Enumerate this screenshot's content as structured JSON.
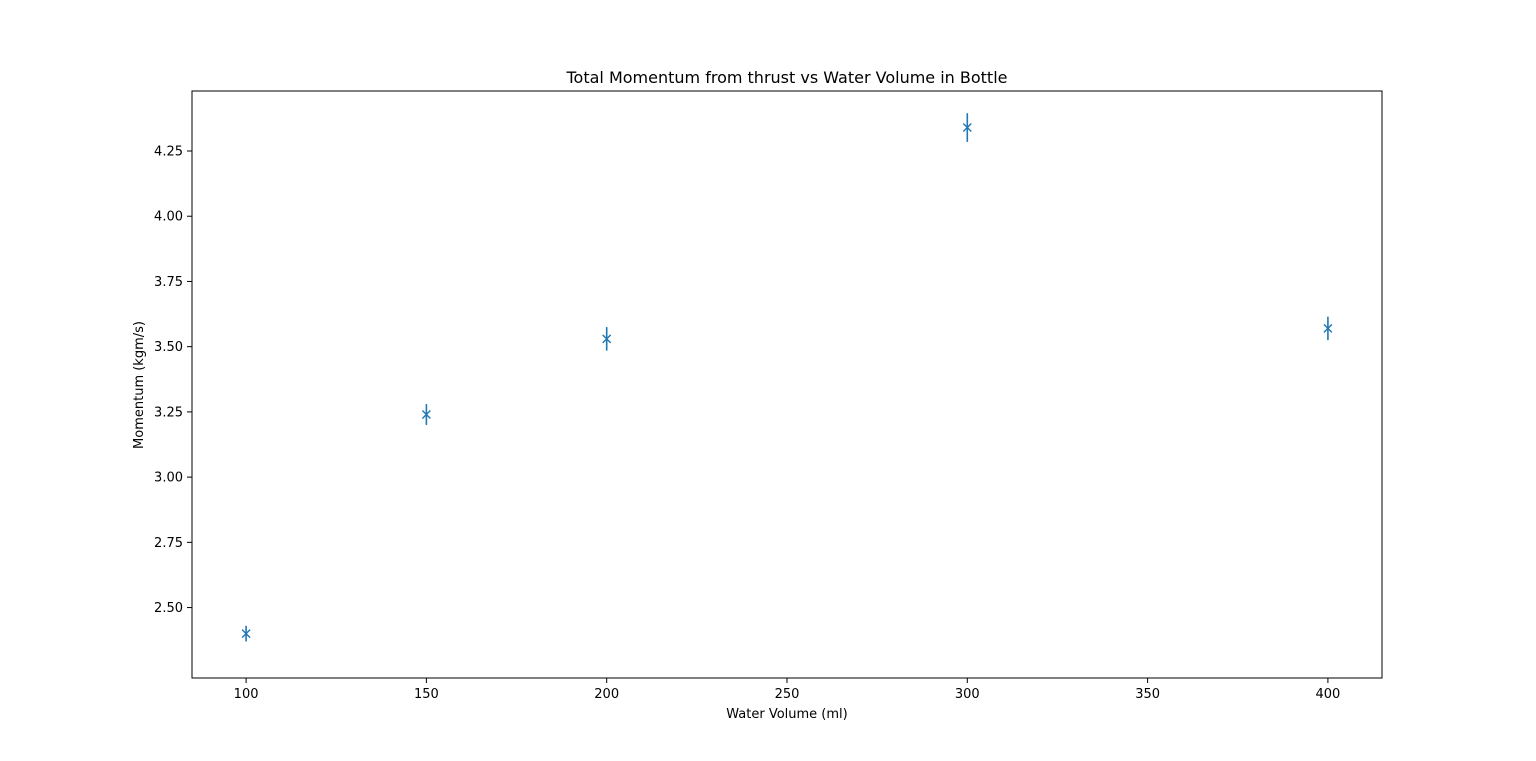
{
  "chart_data": {
    "type": "scatter",
    "title": "Total Momentum from thrust vs Water Volume in Bottle",
    "xlabel": "Water Volume (ml)",
    "ylabel": "Momentum (kgm/s)",
    "xlim": [
      85,
      415
    ],
    "ylim": [
      2.23,
      4.48
    ],
    "x_ticks": [
      100,
      150,
      200,
      250,
      300,
      350,
      400
    ],
    "y_ticks": [
      2.5,
      2.75,
      3.0,
      3.25,
      3.5,
      3.75,
      4.0,
      4.25
    ],
    "grid": false,
    "marker": "x",
    "color": "#1f77b4",
    "series": [
      {
        "x": [
          100,
          150,
          200,
          300,
          400
        ],
        "y": [
          2.4,
          3.24,
          3.53,
          4.34,
          3.57
        ],
        "yerr": [
          0.03,
          0.04,
          0.045,
          0.055,
          0.045
        ]
      }
    ]
  }
}
